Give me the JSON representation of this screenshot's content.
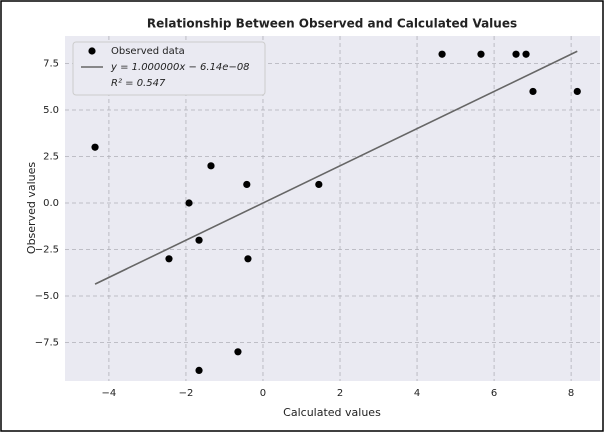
{
  "chart_data": {
    "type": "scatter",
    "title": "Relationship Between Observed and Calculated Values",
    "x_label": "Calculated values",
    "y_label": "Observed values",
    "series": [
      {
        "name": "Observed data",
        "color": "#000000",
        "kind": "points",
        "x": [
          -4.36,
          -1.35,
          -1.92,
          -0.42,
          -1.66,
          -2.44,
          -0.39,
          1.45,
          -0.65,
          -1.66,
          4.65,
          5.66,
          6.57,
          6.83,
          7.01,
          8.16
        ],
        "values": [
          3,
          2,
          0,
          1,
          -2,
          -3,
          -3,
          1,
          -8,
          -9,
          8,
          8,
          8,
          8,
          6,
          6
        ]
      },
      {
        "name": "y = 1.000000x − 6.14e−08",
        "color": "#666666",
        "kind": "line",
        "x": [
          -4.36,
          8.16
        ],
        "values": [
          -4.36,
          8.16
        ]
      }
    ],
    "annotation": "R² = 0.547",
    "xlim": [
      -5.14,
      8.75
    ],
    "ylim": [
      -9.57,
      8.98
    ],
    "xticks": [
      {
        "value": -4,
        "label": "−4"
      },
      {
        "value": -2,
        "label": "−2"
      },
      0,
      2,
      4,
      6,
      8
    ],
    "yticks": [
      {
        "value": -7.5,
        "label": "−7.5"
      },
      {
        "value": -5,
        "label": "−5.0"
      },
      {
        "value": -2.5,
        "label": "−2.5"
      },
      {
        "value": 0,
        "label": "0.0"
      },
      2.5,
      {
        "value": 5,
        "label": "5.0"
      },
      7.5
    ],
    "grid": true,
    "legend": "upper left"
  }
}
